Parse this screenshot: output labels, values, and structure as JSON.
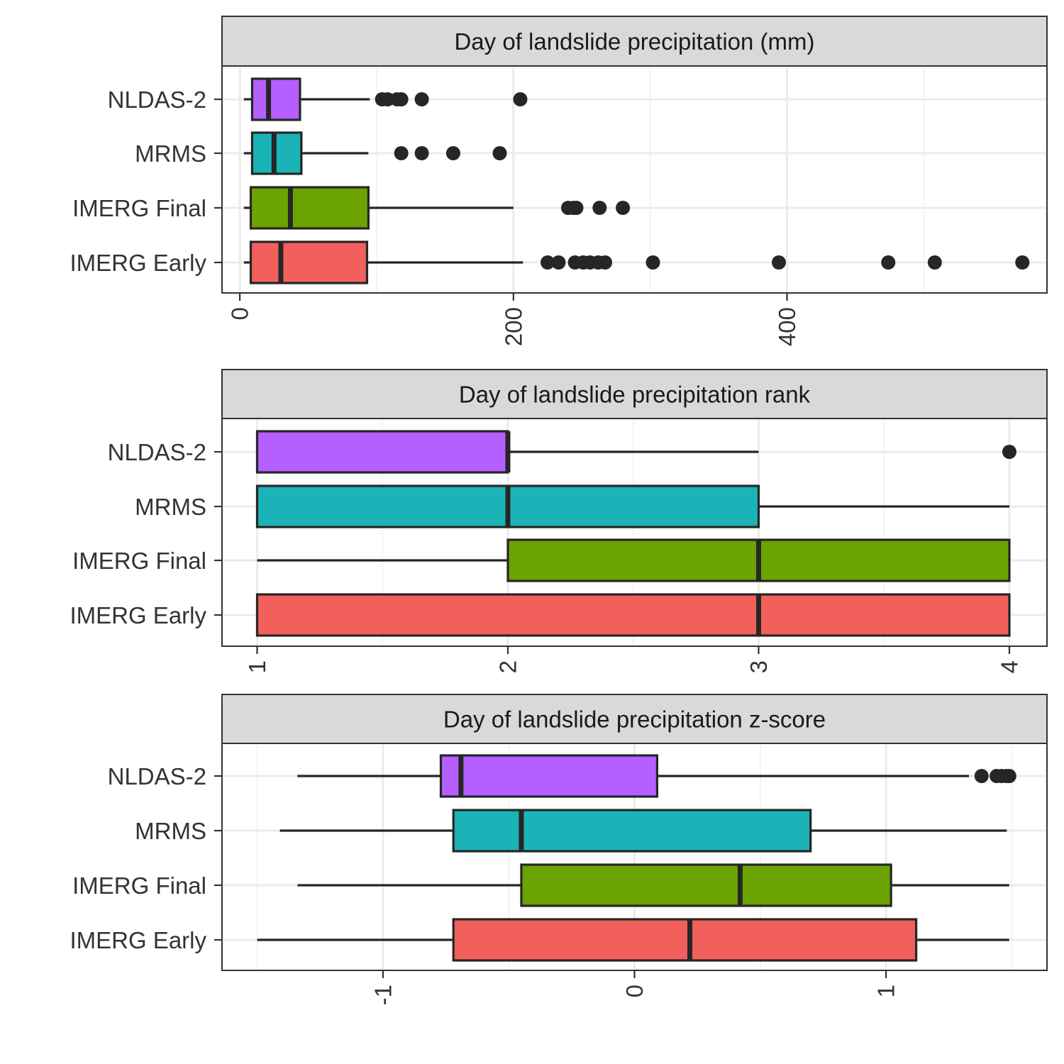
{
  "chart_data": [
    {
      "type": "boxplot",
      "title": "Day of landslide precipitation (mm)",
      "xlabel": "",
      "ylabel": "",
      "xlim": [
        -13,
        590
      ],
      "xticks": [
        0,
        200,
        400
      ],
      "xtick_labels": [
        "0",
        "200",
        "400"
      ],
      "minor_xticks": [
        100,
        300,
        500
      ],
      "grid": true,
      "legend": "none",
      "categories": [
        "NLDAS-2",
        "MRMS",
        "IMERG Final",
        "IMERG Early"
      ],
      "series": [
        {
          "category": "NLDAS-2",
          "color": "#B55FFF",
          "whisker_low": 3,
          "q1": 9,
          "median": 21,
          "q3": 44,
          "whisker_high": 95,
          "outliers": [
            104,
            108,
            115,
            118,
            133,
            205
          ]
        },
        {
          "category": "MRMS",
          "color": "#1AB3B7",
          "whisker_low": 3,
          "q1": 9,
          "median": 25,
          "q3": 45,
          "whisker_high": 94,
          "outliers": [
            118,
            133,
            156,
            190
          ]
        },
        {
          "category": "IMERG Final",
          "color": "#6BA300",
          "whisker_low": 3,
          "q1": 8,
          "median": 37,
          "q3": 94,
          "whisker_high": 200,
          "outliers": [
            240,
            244,
            246,
            263,
            280
          ]
        },
        {
          "category": "IMERG Early",
          "color": "#F2605C",
          "whisker_low": 3,
          "q1": 8,
          "median": 30,
          "q3": 93,
          "whisker_high": 207,
          "outliers": [
            225,
            233,
            245,
            251,
            256,
            262,
            267,
            302,
            394,
            474,
            508,
            572
          ]
        }
      ]
    },
    {
      "type": "boxplot",
      "title": "Day of landslide precipitation rank",
      "xlabel": "",
      "ylabel": "",
      "xlim": [
        0.86,
        4.15
      ],
      "xticks": [
        1,
        2,
        3,
        4
      ],
      "xtick_labels": [
        "1",
        "2",
        "3",
        "4"
      ],
      "minor_xticks": [
        1.5,
        2.5,
        3.5
      ],
      "grid": true,
      "legend": "none",
      "categories": [
        "NLDAS-2",
        "MRMS",
        "IMERG Final",
        "IMERG Early"
      ],
      "series": [
        {
          "category": "NLDAS-2",
          "color": "#B55FFF",
          "whisker_low": 1,
          "q1": 1,
          "median": 2,
          "q3": 2,
          "whisker_high": 3,
          "outliers": [
            4
          ]
        },
        {
          "category": "MRMS",
          "color": "#1AB3B7",
          "whisker_low": 1,
          "q1": 1,
          "median": 2,
          "q3": 3,
          "whisker_high": 4,
          "outliers": []
        },
        {
          "category": "IMERG Final",
          "color": "#6BA300",
          "whisker_low": 1,
          "q1": 2,
          "median": 3,
          "q3": 4,
          "whisker_high": 4,
          "outliers": []
        },
        {
          "category": "IMERG Early",
          "color": "#F2605C",
          "whisker_low": 1,
          "q1": 1,
          "median": 3,
          "q3": 4,
          "whisker_high": 4,
          "outliers": []
        }
      ]
    },
    {
      "type": "boxplot",
      "title": "Day of landslide precipitation z-score",
      "xlabel": "",
      "ylabel": "",
      "xlim": [
        -1.64,
        1.64
      ],
      "xticks": [
        -1,
        0,
        1
      ],
      "xtick_labels": [
        "-1",
        "0",
        "1"
      ],
      "minor_xticks": [
        -1.5,
        -0.5,
        0.5,
        1.5
      ],
      "grid": true,
      "legend": "none",
      "categories": [
        "NLDAS-2",
        "MRMS",
        "IMERG Final",
        "IMERG Early"
      ],
      "series": [
        {
          "category": "NLDAS-2",
          "color": "#B55FFF",
          "whisker_low": -1.34,
          "q1": -0.77,
          "median": -0.69,
          "q3": 0.09,
          "whisker_high": 1.33,
          "outliers": [
            1.38,
            1.44,
            1.46,
            1.48,
            1.49
          ]
        },
        {
          "category": "MRMS",
          "color": "#1AB3B7",
          "whisker_low": -1.41,
          "q1": -0.72,
          "median": -0.45,
          "q3": 0.7,
          "whisker_high": 1.48,
          "outliers": []
        },
        {
          "category": "IMERG Final",
          "color": "#6BA300",
          "whisker_low": -1.34,
          "q1": -0.45,
          "median": 0.42,
          "q3": 1.02,
          "whisker_high": 1.49,
          "outliers": []
        },
        {
          "category": "IMERG Early",
          "color": "#F2605C",
          "whisker_low": -1.5,
          "q1": -0.72,
          "median": 0.22,
          "q3": 1.12,
          "whisker_high": 1.49,
          "outliers": []
        }
      ]
    }
  ]
}
